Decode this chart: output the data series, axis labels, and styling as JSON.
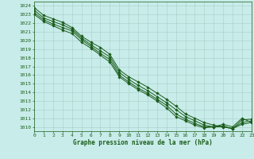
{
  "title": "Graphe pression niveau de la mer (hPa)",
  "background_color": "#c8ece9",
  "grid_color": "#a8ccc8",
  "line_color": "#1a5c1a",
  "marker_color": "#1a5c1a",
  "xmin": 0,
  "xmax": 23,
  "ymin": 1009.5,
  "ymax": 1024.5,
  "yticks": [
    1010,
    1011,
    1012,
    1013,
    1014,
    1015,
    1016,
    1017,
    1018,
    1019,
    1020,
    1021,
    1022,
    1023,
    1024
  ],
  "xticks": [
    0,
    1,
    2,
    3,
    4,
    5,
    6,
    7,
    8,
    9,
    10,
    11,
    12,
    13,
    14,
    15,
    16,
    17,
    18,
    19,
    20,
    21,
    22,
    23
  ],
  "series": [
    [
      1023.8,
      1022.9,
      1022.5,
      1022.1,
      1021.5,
      1020.5,
      1019.8,
      1019.2,
      1018.4,
      1016.6,
      1015.8,
      1015.2,
      1014.6,
      1013.9,
      1013.2,
      1012.4,
      1011.5,
      1011.0,
      1010.5,
      1010.2,
      1010.0,
      1009.8,
      1010.3,
      1010.5
    ],
    [
      1023.5,
      1022.6,
      1022.2,
      1021.8,
      1021.3,
      1020.3,
      1019.5,
      1018.8,
      1018.1,
      1016.3,
      1015.5,
      1014.8,
      1014.2,
      1013.5,
      1012.8,
      1012.0,
      1011.2,
      1010.7,
      1010.2,
      1010.0,
      1010.0,
      1009.8,
      1010.5,
      1010.7
    ],
    [
      1023.2,
      1022.4,
      1021.9,
      1021.5,
      1021.1,
      1020.1,
      1019.3,
      1018.5,
      1017.8,
      1016.0,
      1015.2,
      1014.5,
      1013.9,
      1013.2,
      1012.5,
      1011.5,
      1010.9,
      1010.4,
      1010.0,
      1010.0,
      1010.1,
      1009.8,
      1010.8,
      1010.9
    ],
    [
      1023.0,
      1022.2,
      1021.7,
      1021.2,
      1020.8,
      1019.8,
      1019.1,
      1018.3,
      1017.5,
      1015.8,
      1015.0,
      1014.3,
      1013.7,
      1013.0,
      1012.2,
      1011.2,
      1010.7,
      1010.2,
      1009.9,
      1010.0,
      1010.3,
      1010.0,
      1011.0,
      1010.5
    ]
  ]
}
